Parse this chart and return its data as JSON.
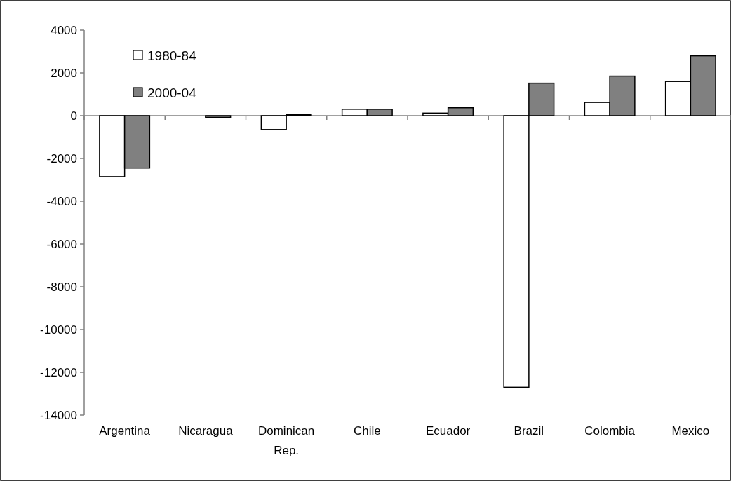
{
  "chart_data": {
    "type": "bar",
    "categories": [
      "Argentina",
      "Nicaragua",
      "Dominican Rep.",
      "Chile",
      "Ecuador",
      "Brazil",
      "Colombia",
      "Mexico"
    ],
    "series": [
      {
        "name": "1980-84",
        "color": "#ffffff",
        "values": [
          -2850,
          0,
          -650,
          300,
          120,
          -12700,
          620,
          1600
        ]
      },
      {
        "name": "2000-04",
        "color": "#808080",
        "values": [
          -2450,
          -80,
          50,
          300,
          370,
          1520,
          1850,
          2800
        ]
      }
    ],
    "ylim": [
      -14000,
      4000
    ],
    "yticks": [
      -14000,
      -12000,
      -10000,
      -8000,
      -6000,
      -4000,
      -2000,
      0,
      2000,
      4000
    ],
    "legend": "top left"
  }
}
